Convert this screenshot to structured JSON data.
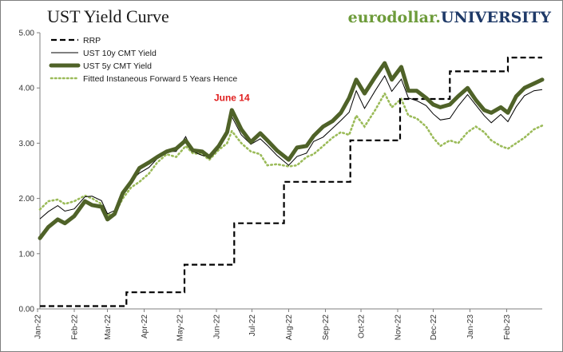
{
  "header": {
    "title": "UST Yield Curve",
    "brand_part1": "eurodollar.",
    "brand_part2": "UNIVERSITY"
  },
  "chart_data": {
    "type": "line",
    "title": "UST Yield Curve",
    "xlabel": "",
    "ylabel": "",
    "ylim": [
      0,
      5
    ],
    "y_ticks": [
      "0.00",
      "1.00",
      "2.00",
      "3.00",
      "4.00",
      "5.00"
    ],
    "x_ticks": [
      "Jan-22",
      "Feb-22",
      "Mar-22",
      "Apr-22",
      "May-22",
      "Jun-22",
      "Jul-22",
      "Aug-22",
      "Sep-22",
      "Oct-22",
      "Nov-22",
      "Dec-22",
      "Jan-23",
      "Feb-23"
    ],
    "x_range": [
      "2022-01-03",
      "2023-03-03"
    ],
    "legend_position": "top-left",
    "grid": false,
    "annotation": {
      "text": "June 14",
      "x": "2022-06-14",
      "y": 3.62
    },
    "series": [
      {
        "name": "RRP",
        "style": "dashed",
        "color": "#000000",
        "step": true,
        "points": [
          [
            "2022-01-03",
            0.05
          ],
          [
            "2022-03-17",
            0.3
          ],
          [
            "2022-05-05",
            0.8
          ],
          [
            "2022-06-16",
            1.55
          ],
          [
            "2022-07-28",
            2.3
          ],
          [
            "2022-09-22",
            3.05
          ],
          [
            "2022-11-03",
            3.8
          ],
          [
            "2022-12-15",
            4.3
          ],
          [
            "2023-02-02",
            4.55
          ],
          [
            "2023-03-03",
            4.55
          ]
        ]
      },
      {
        "name": "UST 10y CMT Yield",
        "style": "thin",
        "color": "#000000",
        "points": [
          [
            "2022-01-03",
            1.63
          ],
          [
            "2022-01-10",
            1.76
          ],
          [
            "2022-01-18",
            1.87
          ],
          [
            "2022-01-24",
            1.77
          ],
          [
            "2022-02-01",
            1.81
          ],
          [
            "2022-02-10",
            2.03
          ],
          [
            "2022-02-16",
            2.04
          ],
          [
            "2022-02-24",
            1.96
          ],
          [
            "2022-03-01",
            1.72
          ],
          [
            "2022-03-07",
            1.78
          ],
          [
            "2022-03-14",
            2.13
          ],
          [
            "2022-03-21",
            2.32
          ],
          [
            "2022-03-28",
            2.46
          ],
          [
            "2022-04-05",
            2.56
          ],
          [
            "2022-04-12",
            2.72
          ],
          [
            "2022-04-20",
            2.85
          ],
          [
            "2022-04-28",
            2.85
          ],
          [
            "2022-05-06",
            3.12
          ],
          [
            "2022-05-12",
            2.85
          ],
          [
            "2022-05-20",
            2.78
          ],
          [
            "2022-05-26",
            2.75
          ],
          [
            "2022-06-03",
            2.96
          ],
          [
            "2022-06-10",
            3.15
          ],
          [
            "2022-06-14",
            3.48
          ],
          [
            "2022-06-22",
            3.15
          ],
          [
            "2022-06-30",
            2.98
          ],
          [
            "2022-07-08",
            3.08
          ],
          [
            "2022-07-14",
            2.96
          ],
          [
            "2022-07-22",
            2.78
          ],
          [
            "2022-08-01",
            2.6
          ],
          [
            "2022-08-08",
            2.76
          ],
          [
            "2022-08-16",
            2.82
          ],
          [
            "2022-08-22",
            3.03
          ],
          [
            "2022-08-30",
            3.11
          ],
          [
            "2022-09-07",
            3.27
          ],
          [
            "2022-09-14",
            3.41
          ],
          [
            "2022-09-21",
            3.56
          ],
          [
            "2022-09-27",
            3.95
          ],
          [
            "2022-10-04",
            3.63
          ],
          [
            "2022-10-13",
            3.95
          ],
          [
            "2022-10-21",
            4.22
          ],
          [
            "2022-10-27",
            3.94
          ],
          [
            "2022-11-04",
            4.16
          ],
          [
            "2022-11-10",
            3.82
          ],
          [
            "2022-11-17",
            3.77
          ],
          [
            "2022-11-25",
            3.68
          ],
          [
            "2022-12-01",
            3.53
          ],
          [
            "2022-12-07",
            3.42
          ],
          [
            "2022-12-15",
            3.45
          ],
          [
            "2022-12-22",
            3.67
          ],
          [
            "2022-12-30",
            3.88
          ],
          [
            "2023-01-06",
            3.69
          ],
          [
            "2023-01-13",
            3.5
          ],
          [
            "2023-01-19",
            3.37
          ],
          [
            "2023-01-27",
            3.52
          ],
          [
            "2023-02-02",
            3.39
          ],
          [
            "2023-02-09",
            3.66
          ],
          [
            "2023-02-16",
            3.86
          ],
          [
            "2023-02-24",
            3.95
          ],
          [
            "2023-03-03",
            3.97
          ]
        ]
      },
      {
        "name": "UST 5y CMT Yield",
        "style": "thick",
        "color": "#4f6228",
        "points": [
          [
            "2022-01-03",
            1.28
          ],
          [
            "2022-01-10",
            1.48
          ],
          [
            "2022-01-18",
            1.62
          ],
          [
            "2022-01-24",
            1.55
          ],
          [
            "2022-02-01",
            1.68
          ],
          [
            "2022-02-10",
            1.95
          ],
          [
            "2022-02-16",
            1.88
          ],
          [
            "2022-02-24",
            1.85
          ],
          [
            "2022-03-01",
            1.62
          ],
          [
            "2022-03-07",
            1.72
          ],
          [
            "2022-03-14",
            2.1
          ],
          [
            "2022-03-21",
            2.3
          ],
          [
            "2022-03-28",
            2.55
          ],
          [
            "2022-04-05",
            2.65
          ],
          [
            "2022-04-12",
            2.75
          ],
          [
            "2022-04-20",
            2.85
          ],
          [
            "2022-04-28",
            2.9
          ],
          [
            "2022-05-06",
            3.05
          ],
          [
            "2022-05-12",
            2.87
          ],
          [
            "2022-05-20",
            2.85
          ],
          [
            "2022-05-26",
            2.75
          ],
          [
            "2022-06-03",
            2.95
          ],
          [
            "2022-06-10",
            3.2
          ],
          [
            "2022-06-14",
            3.6
          ],
          [
            "2022-06-22",
            3.25
          ],
          [
            "2022-06-30",
            3.02
          ],
          [
            "2022-07-08",
            3.18
          ],
          [
            "2022-07-14",
            3.05
          ],
          [
            "2022-07-22",
            2.87
          ],
          [
            "2022-08-01",
            2.7
          ],
          [
            "2022-08-08",
            2.92
          ],
          [
            "2022-08-16",
            2.95
          ],
          [
            "2022-08-22",
            3.13
          ],
          [
            "2022-08-30",
            3.3
          ],
          [
            "2022-09-07",
            3.4
          ],
          [
            "2022-09-14",
            3.55
          ],
          [
            "2022-09-21",
            3.82
          ],
          [
            "2022-09-27",
            4.15
          ],
          [
            "2022-10-04",
            3.9
          ],
          [
            "2022-10-13",
            4.2
          ],
          [
            "2022-10-21",
            4.45
          ],
          [
            "2022-10-27",
            4.15
          ],
          [
            "2022-11-04",
            4.38
          ],
          [
            "2022-11-10",
            3.95
          ],
          [
            "2022-11-17",
            3.95
          ],
          [
            "2022-11-25",
            3.82
          ],
          [
            "2022-12-01",
            3.7
          ],
          [
            "2022-12-07",
            3.65
          ],
          [
            "2022-12-15",
            3.7
          ],
          [
            "2022-12-22",
            3.85
          ],
          [
            "2022-12-30",
            4.0
          ],
          [
            "2023-01-06",
            3.78
          ],
          [
            "2023-01-13",
            3.6
          ],
          [
            "2023-01-19",
            3.55
          ],
          [
            "2023-01-27",
            3.65
          ],
          [
            "2023-02-02",
            3.55
          ],
          [
            "2023-02-09",
            3.85
          ],
          [
            "2023-02-16",
            4.0
          ],
          [
            "2023-02-24",
            4.08
          ],
          [
            "2023-03-03",
            4.15
          ]
        ]
      },
      {
        "name": "Fitted Instaneous Forward 5 Years Hence",
        "style": "dotted",
        "color": "#9bbb59",
        "points": [
          [
            "2022-01-03",
            1.8
          ],
          [
            "2022-01-10",
            1.95
          ],
          [
            "2022-01-18",
            1.98
          ],
          [
            "2022-01-24",
            1.9
          ],
          [
            "2022-02-01",
            1.95
          ],
          [
            "2022-02-10",
            2.05
          ],
          [
            "2022-02-16",
            2.0
          ],
          [
            "2022-02-24",
            1.9
          ],
          [
            "2022-03-01",
            1.7
          ],
          [
            "2022-03-07",
            1.72
          ],
          [
            "2022-03-14",
            2.0
          ],
          [
            "2022-03-21",
            2.2
          ],
          [
            "2022-03-28",
            2.3
          ],
          [
            "2022-04-05",
            2.45
          ],
          [
            "2022-04-12",
            2.65
          ],
          [
            "2022-04-20",
            2.8
          ],
          [
            "2022-04-28",
            2.75
          ],
          [
            "2022-05-06",
            2.95
          ],
          [
            "2022-05-12",
            2.82
          ],
          [
            "2022-05-20",
            2.8
          ],
          [
            "2022-05-26",
            2.7
          ],
          [
            "2022-06-03",
            2.88
          ],
          [
            "2022-06-10",
            3.0
          ],
          [
            "2022-06-14",
            3.22
          ],
          [
            "2022-06-22",
            3.0
          ],
          [
            "2022-06-30",
            2.85
          ],
          [
            "2022-07-08",
            2.8
          ],
          [
            "2022-07-14",
            2.6
          ],
          [
            "2022-07-22",
            2.62
          ],
          [
            "2022-08-01",
            2.58
          ],
          [
            "2022-08-08",
            2.6
          ],
          [
            "2022-08-16",
            2.75
          ],
          [
            "2022-08-22",
            2.8
          ],
          [
            "2022-08-30",
            2.95
          ],
          [
            "2022-09-07",
            3.1
          ],
          [
            "2022-09-14",
            3.2
          ],
          [
            "2022-09-21",
            3.15
          ],
          [
            "2022-09-27",
            3.5
          ],
          [
            "2022-10-04",
            3.3
          ],
          [
            "2022-10-13",
            3.6
          ],
          [
            "2022-10-21",
            3.9
          ],
          [
            "2022-10-27",
            3.65
          ],
          [
            "2022-11-04",
            3.8
          ],
          [
            "2022-11-10",
            3.5
          ],
          [
            "2022-11-17",
            3.45
          ],
          [
            "2022-11-25",
            3.3
          ],
          [
            "2022-12-01",
            3.1
          ],
          [
            "2022-12-07",
            2.95
          ],
          [
            "2022-12-15",
            3.05
          ],
          [
            "2022-12-22",
            3.0
          ],
          [
            "2022-12-30",
            3.2
          ],
          [
            "2023-01-06",
            3.3
          ],
          [
            "2023-01-13",
            3.2
          ],
          [
            "2023-01-19",
            3.05
          ],
          [
            "2023-01-27",
            2.95
          ],
          [
            "2023-02-02",
            2.9
          ],
          [
            "2023-02-09",
            3.0
          ],
          [
            "2023-02-16",
            3.1
          ],
          [
            "2023-02-24",
            3.25
          ],
          [
            "2023-03-03",
            3.32
          ]
        ]
      }
    ]
  }
}
